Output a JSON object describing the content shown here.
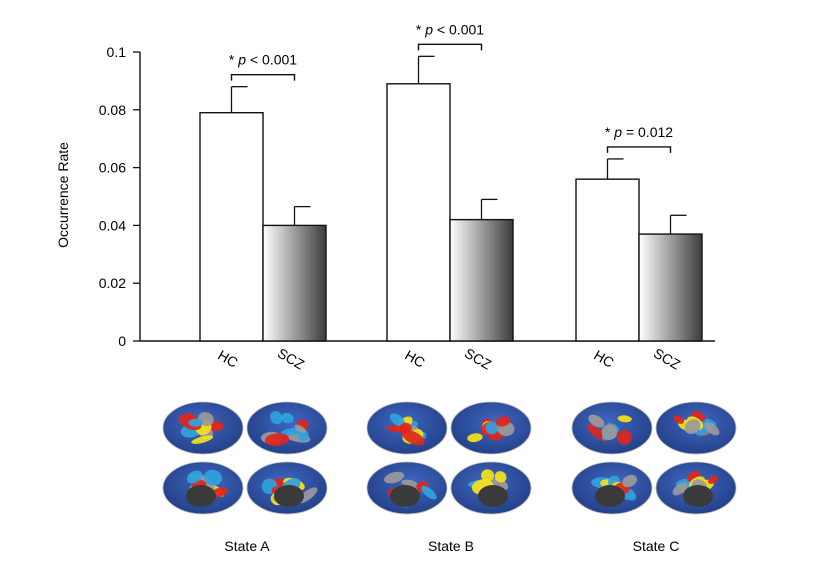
{
  "chart_data": {
    "type": "bar",
    "title": "",
    "ylabel": "Occurrence Rate",
    "xlabel": "",
    "ylim": [
      0,
      0.1
    ],
    "yticks": [
      "0",
      "0.02",
      "0.04",
      "0.06",
      "0.08",
      "0.1"
    ],
    "group_labels": [
      "HC",
      "SCZ"
    ],
    "groups": [
      {
        "state": "State A",
        "bars": [
          {
            "label": "HC",
            "value": 0.079,
            "error": 0.009
          },
          {
            "label": "SCZ",
            "value": 0.04,
            "error": 0.0065
          }
        ],
        "annotation": {
          "prefix": "* ",
          "p": "p",
          "rest": " < 0.001"
        }
      },
      {
        "state": "State B",
        "bars": [
          {
            "label": "HC",
            "value": 0.089,
            "error": 0.0095
          },
          {
            "label": "SCZ",
            "value": 0.042,
            "error": 0.007
          }
        ],
        "annotation": {
          "prefix": "* ",
          "p": "p",
          "rest": " < 0.001"
        }
      },
      {
        "state": "State C",
        "bars": [
          {
            "label": "HC",
            "value": 0.056,
            "error": 0.007
          },
          {
            "label": "SCZ",
            "value": 0.037,
            "error": 0.0065
          }
        ],
        "annotation": {
          "prefix": "* ",
          "p": "p",
          "rest": " = 0.012"
        }
      }
    ],
    "grid": false
  },
  "colors": {
    "hc_fill": "#ffffff",
    "scz_gradient_start": "#ffffff",
    "scz_gradient_end": "#3c3c3c",
    "axis": "#111111",
    "brain_base": "#2e4f9e",
    "brain_gray": "#9a9a9a",
    "brain_red": "#e0261c",
    "brain_yellow": "#f7e21a",
    "brain_cyan": "#2fa3df",
    "brain_hole": "#3a3a3a"
  }
}
